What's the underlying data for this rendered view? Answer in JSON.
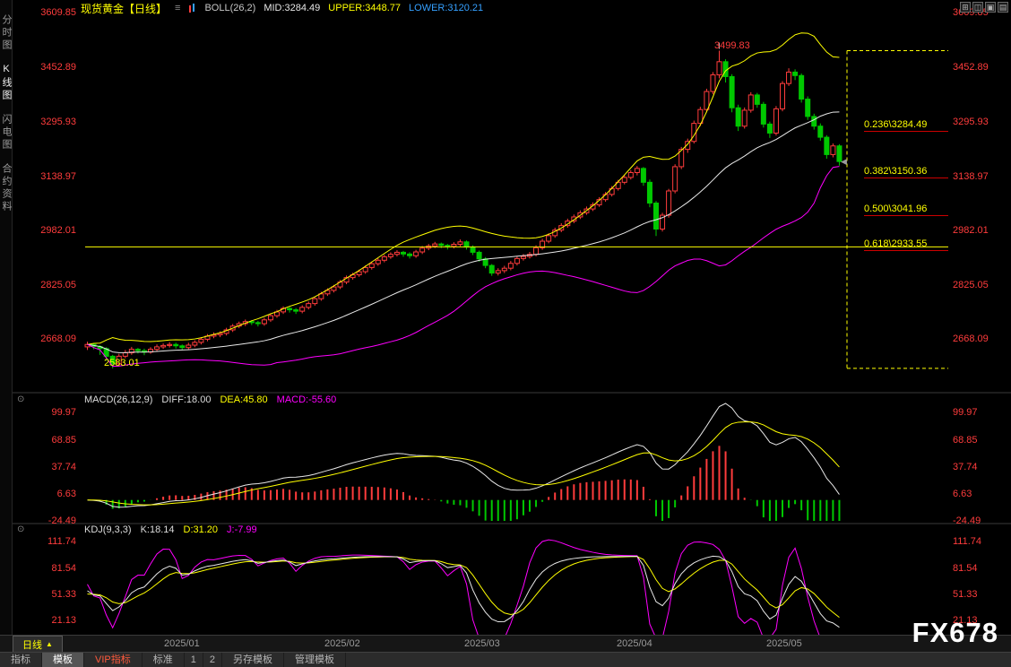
{
  "topbar": {
    "title": "现货黄金【日线】",
    "boll": "BOLL(26,2)",
    "mid": "MID:3284.49",
    "upper": "UPPER:3448.77",
    "lower": "LOWER:3120.21"
  },
  "icons": {
    "menu_glyph": "≡",
    "layout": [
      "⊞",
      "◫",
      "▣",
      "▤"
    ],
    "collapse_glyph": "⊙",
    "period_arrow": "▲",
    "marker_glyph": "◀"
  },
  "sidebar": {
    "items": [
      "分时图",
      "K线图",
      "闪电图",
      "合约资料"
    ]
  },
  "price_axis": {
    "values": [
      "3609.85",
      "3452.89",
      "3295.93",
      "3138.97",
      "2982.01",
      "2825.05",
      "2668.09"
    ]
  },
  "macd_panel": {
    "title": "MACD(26,12,9)",
    "diff": "DIFF:18.00",
    "dea": "DEA:45.80",
    "macd": "MACD:-55.60",
    "axis": [
      "99.97",
      "68.85",
      "37.74",
      "6.63",
      "-24.49"
    ]
  },
  "kdj_panel": {
    "title": "KDJ(9,3,3)",
    "k": "K:18.14",
    "d": "D:31.20",
    "j": "J:-7.99",
    "axis": [
      "111.74",
      "81.54",
      "51.33",
      "21.13"
    ]
  },
  "fib": {
    "labels": [
      "0.236\\3284.49",
      "0.382\\3150.36",
      "0.500\\3041.96",
      "0.618\\2933.55"
    ]
  },
  "annotations": {
    "high": "3499.83",
    "low": "2583.01"
  },
  "timeline": {
    "period": "日线",
    "dates": [
      "2025/01",
      "2025/02",
      "2025/03",
      "2025/04",
      "2025/05"
    ]
  },
  "toolbar": {
    "items": [
      "指标",
      "模板",
      "VIP指标",
      "标准",
      "1",
      "2",
      "另存模板",
      "管理模板"
    ]
  },
  "watermark": "FX678",
  "colors": {
    "up": "#ff3c3c",
    "down": "#00c800",
    "boll_mid": "#e8e8e8",
    "boll_upper": "#ffff00",
    "boll_lower": "#ff00ff",
    "axis_text": "#ff3c3c",
    "fib": "#ffff00",
    "diff_line": "#e8e8e8",
    "dea_line": "#ffff00",
    "k_line": "#e8e8e8",
    "d_line": "#ffff00",
    "j_line": "#ff00ff",
    "separator": "#3a3a3a"
  },
  "chart_data": {
    "type": "candlestick",
    "title": "现货黄金 日线",
    "price_ticks": [
      3609.85,
      3452.89,
      3295.93,
      3138.97,
      2982.01,
      2825.05,
      2668.09
    ],
    "x_dates": [
      "2025/01",
      "2025/02",
      "2025/03",
      "2025/04",
      "2025/05"
    ],
    "boll": {
      "period": 26,
      "mult": 2,
      "mid": 3284.49,
      "upper": 3448.77,
      "lower": 3120.21
    },
    "high_marker": 3499.83,
    "low_marker": 2583.01,
    "fib_levels": [
      {
        "ratio": "0.236",
        "price": 3284.49
      },
      {
        "ratio": "0.382",
        "price": 3150.36
      },
      {
        "ratio": "0.500",
        "price": 3041.96
      },
      {
        "ratio": "0.618",
        "price": 2933.55
      }
    ],
    "fib_range": {
      "high": 3499.83,
      "low": 2583.01
    },
    "macd": {
      "params": [
        26,
        12,
        9
      ],
      "diff": 18.0,
      "dea": 45.8,
      "macd": -55.6,
      "ticks": [
        99.97,
        68.85,
        37.74,
        6.63,
        -24.49
      ]
    },
    "kdj": {
      "params": [
        9,
        3,
        3
      ],
      "k": 18.14,
      "d": 31.2,
      "j": -7.99,
      "ticks": [
        111.74,
        81.54,
        51.33,
        21.13
      ]
    },
    "candles": [
      [
        2645,
        2660,
        2636,
        2652
      ],
      [
        2652,
        2656,
        2638,
        2646
      ],
      [
        2646,
        2650,
        2622,
        2640
      ],
      [
        2640,
        2644,
        2605,
        2618
      ],
      [
        2618,
        2622,
        2583,
        2596
      ],
      [
        2596,
        2625,
        2590,
        2618
      ],
      [
        2618,
        2636,
        2612,
        2628
      ],
      [
        2628,
        2645,
        2622,
        2638
      ],
      [
        2638,
        2642,
        2626,
        2634
      ],
      [
        2634,
        2640,
        2621,
        2630
      ],
      [
        2630,
        2644,
        2625,
        2638
      ],
      [
        2638,
        2652,
        2632,
        2645
      ],
      [
        2645,
        2655,
        2639,
        2649
      ],
      [
        2649,
        2659,
        2643,
        2652
      ],
      [
        2652,
        2657,
        2640,
        2648
      ],
      [
        2648,
        2652,
        2635,
        2643
      ],
      [
        2643,
        2657,
        2638,
        2650
      ],
      [
        2650,
        2664,
        2644,
        2658
      ],
      [
        2658,
        2673,
        2652,
        2667
      ],
      [
        2667,
        2682,
        2661,
        2676
      ],
      [
        2676,
        2687,
        2670,
        2680
      ],
      [
        2680,
        2690,
        2673,
        2684
      ],
      [
        2684,
        2700,
        2678,
        2694
      ],
      [
        2694,
        2711,
        2688,
        2705
      ],
      [
        2705,
        2718,
        2699,
        2712
      ],
      [
        2712,
        2724,
        2705,
        2718
      ],
      [
        2718,
        2722,
        2708,
        2715
      ],
      [
        2715,
        2720,
        2704,
        2712
      ],
      [
        2712,
        2729,
        2706,
        2723
      ],
      [
        2723,
        2741,
        2717,
        2735
      ],
      [
        2735,
        2752,
        2729,
        2746
      ],
      [
        2746,
        2762,
        2740,
        2756
      ],
      [
        2756,
        2760,
        2744,
        2752
      ],
      [
        2752,
        2757,
        2740,
        2748
      ],
      [
        2748,
        2765,
        2742,
        2759
      ],
      [
        2759,
        2776,
        2753,
        2770
      ],
      [
        2770,
        2790,
        2764,
        2784
      ],
      [
        2784,
        2804,
        2778,
        2798
      ],
      [
        2798,
        2814,
        2792,
        2808
      ],
      [
        2808,
        2824,
        2802,
        2818
      ],
      [
        2818,
        2838,
        2812,
        2832
      ],
      [
        2832,
        2851,
        2826,
        2845
      ],
      [
        2845,
        2859,
        2839,
        2853
      ],
      [
        2853,
        2868,
        2847,
        2862
      ],
      [
        2862,
        2880,
        2856,
        2874
      ],
      [
        2874,
        2891,
        2868,
        2885
      ],
      [
        2885,
        2901,
        2879,
        2895
      ],
      [
        2895,
        2911,
        2889,
        2905
      ],
      [
        2905,
        2918,
        2899,
        2912
      ],
      [
        2912,
        2924,
        2906,
        2918
      ],
      [
        2918,
        2922,
        2905,
        2913
      ],
      [
        2913,
        2918,
        2900,
        2908
      ],
      [
        2908,
        2925,
        2902,
        2919
      ],
      [
        2919,
        2936,
        2913,
        2930
      ],
      [
        2930,
        2942,
        2924,
        2936
      ],
      [
        2936,
        2948,
        2930,
        2942
      ],
      [
        2942,
        2946,
        2930,
        2938
      ],
      [
        2938,
        2942,
        2926,
        2935
      ],
      [
        2935,
        2947,
        2929,
        2941
      ],
      [
        2941,
        2955,
        2935,
        2948
      ],
      [
        2948,
        2952,
        2926,
        2933
      ],
      [
        2933,
        2938,
        2910,
        2918
      ],
      [
        2918,
        2923,
        2891,
        2899
      ],
      [
        2899,
        2904,
        2872,
        2880
      ],
      [
        2880,
        2884,
        2850,
        2858
      ],
      [
        2858,
        2872,
        2851,
        2865
      ],
      [
        2865,
        2879,
        2858,
        2872
      ],
      [
        2872,
        2893,
        2866,
        2886
      ],
      [
        2886,
        2907,
        2880,
        2900
      ],
      [
        2900,
        2913,
        2894,
        2906
      ],
      [
        2906,
        2919,
        2900,
        2912
      ],
      [
        2912,
        2938,
        2906,
        2931
      ],
      [
        2931,
        2957,
        2925,
        2950
      ],
      [
        2950,
        2973,
        2944,
        2966
      ],
      [
        2966,
        2989,
        2960,
        2982
      ],
      [
        2982,
        3002,
        2976,
        2995
      ],
      [
        2995,
        3015,
        2989,
        3008
      ],
      [
        3008,
        3027,
        3002,
        3020
      ],
      [
        3020,
        3039,
        3014,
        3032
      ],
      [
        3032,
        3050,
        3026,
        3043
      ],
      [
        3043,
        3062,
        3037,
        3055
      ],
      [
        3055,
        3077,
        3049,
        3070
      ],
      [
        3070,
        3092,
        3064,
        3085
      ],
      [
        3085,
        3109,
        3079,
        3102
      ],
      [
        3102,
        3127,
        3096,
        3120
      ],
      [
        3120,
        3141,
        3114,
        3134
      ],
      [
        3134,
        3155,
        3128,
        3148
      ],
      [
        3148,
        3167,
        3140,
        3160
      ],
      [
        3160,
        3164,
        3110,
        3120
      ],
      [
        3120,
        3128,
        3048,
        3060
      ],
      [
        3060,
        3066,
        2965,
        2985
      ],
      [
        2985,
        3032,
        2978,
        3025
      ],
      [
        3025,
        3101,
        3018,
        3095
      ],
      [
        3095,
        3172,
        3088,
        3165
      ],
      [
        3165,
        3222,
        3158,
        3215
      ],
      [
        3215,
        3246,
        3205,
        3238
      ],
      [
        3238,
        3298,
        3232,
        3290
      ],
      [
        3290,
        3338,
        3282,
        3330
      ],
      [
        3330,
        3390,
        3322,
        3382
      ],
      [
        3382,
        3438,
        3374,
        3430
      ],
      [
        3430,
        3499.83,
        3420,
        3468
      ],
      [
        3468,
        3475,
        3408,
        3425
      ],
      [
        3425,
        3432,
        3322,
        3335
      ],
      [
        3335,
        3344,
        3268,
        3282
      ],
      [
        3282,
        3336,
        3275,
        3328
      ],
      [
        3328,
        3380,
        3321,
        3372
      ],
      [
        3372,
        3378,
        3335,
        3345
      ],
      [
        3345,
        3352,
        3278,
        3288
      ],
      [
        3288,
        3295,
        3248,
        3262
      ],
      [
        3262,
        3340,
        3255,
        3332
      ],
      [
        3332,
        3412,
        3325,
        3405
      ],
      [
        3405,
        3449,
        3398,
        3438
      ],
      [
        3438,
        3446,
        3415,
        3428
      ],
      [
        3428,
        3434,
        3350,
        3360
      ],
      [
        3360,
        3368,
        3300,
        3310
      ],
      [
        3310,
        3318,
        3272,
        3282
      ],
      [
        3282,
        3290,
        3240,
        3250
      ],
      [
        3250,
        3256,
        3188,
        3200
      ],
      [
        3200,
        3232,
        3192,
        3225
      ],
      [
        3225,
        3230,
        3168,
        3180
      ]
    ]
  }
}
